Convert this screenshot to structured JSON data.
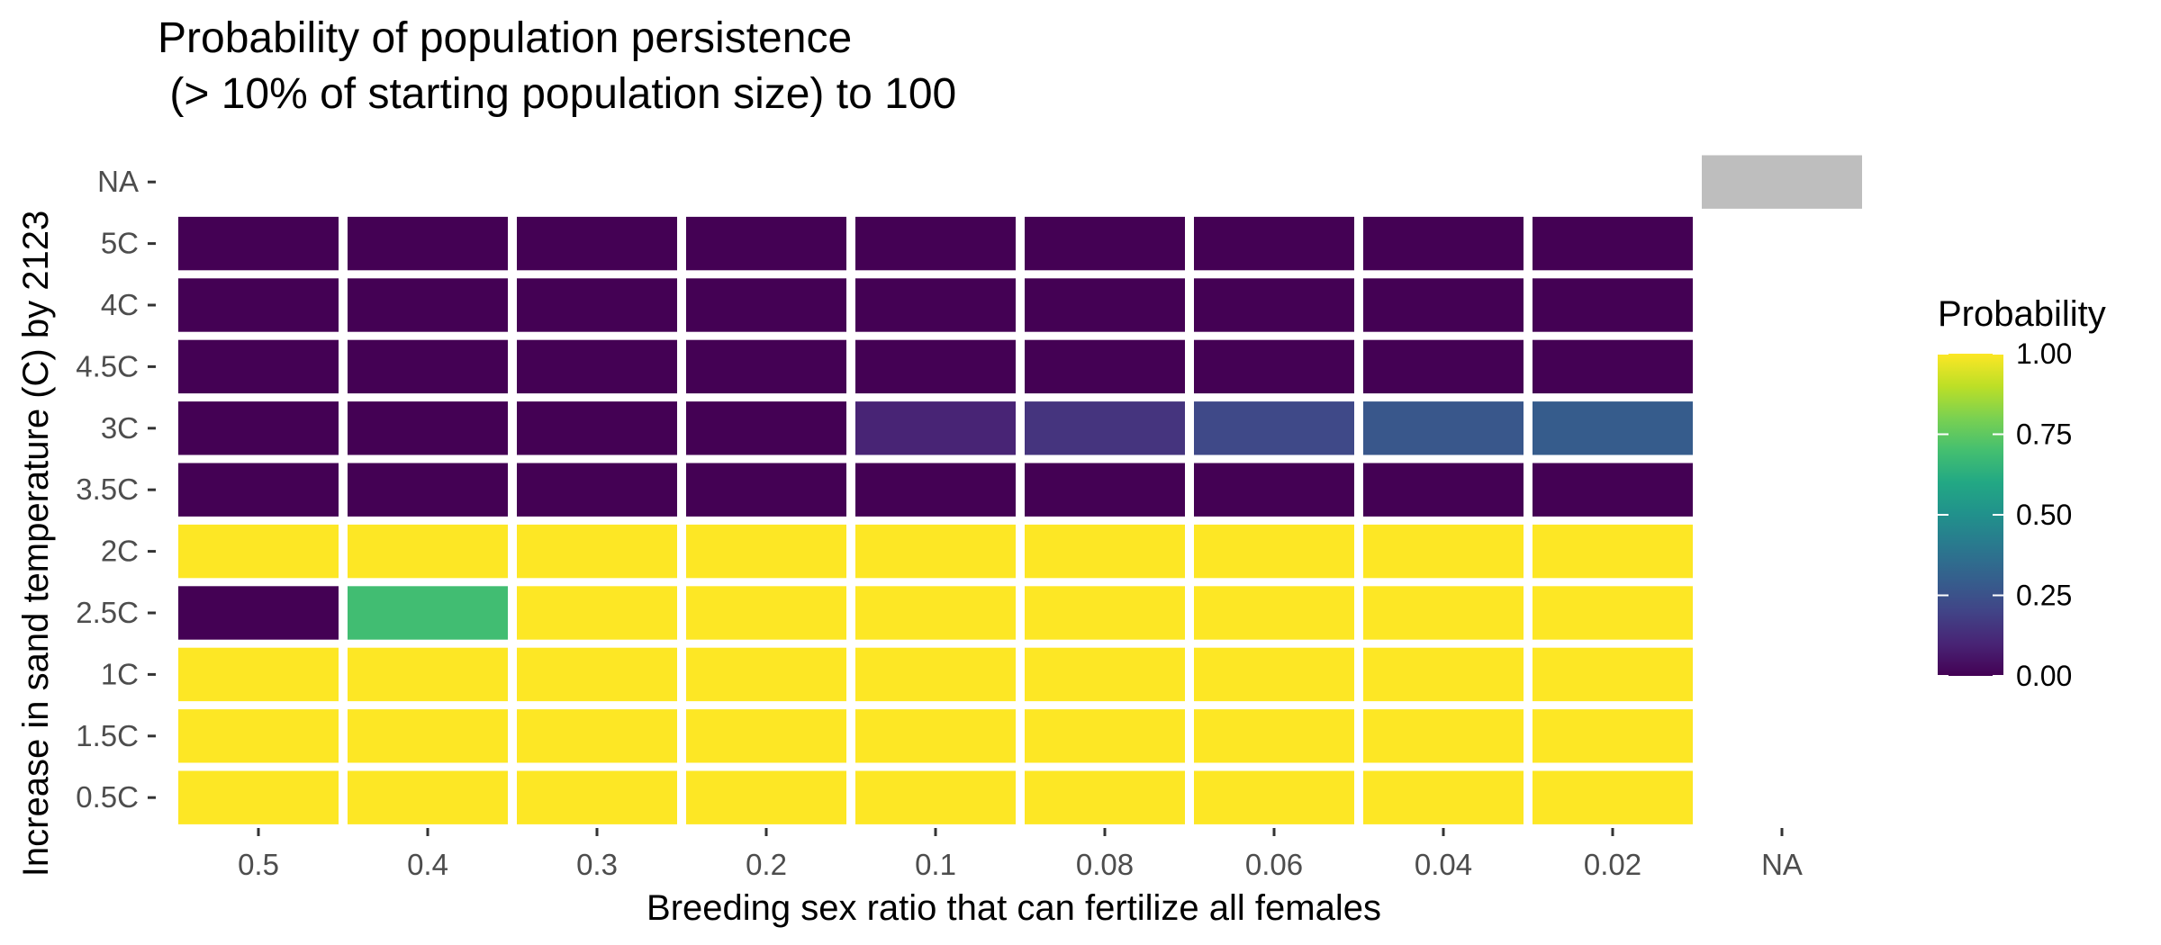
{
  "chart_data": {
    "type": "heatmap",
    "title": [
      "Probability of population persistence",
      " (> 10% of starting population size) to 100"
    ],
    "xlabel": "Breeding sex ratio that can fertilize all females",
    "ylabel": "Increase in sand temperature (C) by 2123",
    "x_categories": [
      "0.5",
      "0.4",
      "0.3",
      "0.2",
      "0.1",
      "0.08",
      "0.06",
      "0.04",
      "0.02",
      "NA"
    ],
    "y_categories": [
      "NA",
      "5C",
      "4C",
      "4.5C",
      "3C",
      "3.5C",
      "2C",
      "2.5C",
      "1C",
      "1.5C",
      "0.5C"
    ],
    "values": [
      [
        null,
        null,
        null,
        null,
        null,
        null,
        null,
        null,
        null,
        "NA"
      ],
      [
        0,
        0,
        0,
        0,
        0,
        0,
        0,
        0,
        0,
        null
      ],
      [
        0,
        0,
        0,
        0,
        0,
        0,
        0,
        0,
        0,
        null
      ],
      [
        0,
        0,
        0,
        0,
        0,
        0,
        0,
        0,
        0,
        null
      ],
      [
        0,
        0,
        0,
        0,
        0.1,
        0.15,
        0.22,
        0.27,
        0.29,
        null
      ],
      [
        0,
        0,
        0,
        0,
        0,
        0,
        0,
        0,
        0,
        null
      ],
      [
        1,
        1,
        1,
        1,
        1,
        1,
        1,
        1,
        1,
        null
      ],
      [
        0,
        0.69,
        1,
        1,
        1,
        1,
        1,
        1,
        1,
        null
      ],
      [
        1,
        1,
        1,
        1,
        1,
        1,
        1,
        1,
        1,
        null
      ],
      [
        1,
        1,
        1,
        1,
        1,
        1,
        1,
        1,
        1,
        null
      ],
      [
        1,
        1,
        1,
        1,
        1,
        1,
        1,
        1,
        1,
        null
      ]
    ],
    "na_color": "#bebebe",
    "colorscale": "viridis",
    "legend": {
      "title": "Probability",
      "placement": "right",
      "ticks": [
        "0.00",
        "0.25",
        "0.50",
        "0.75",
        "1.00"
      ],
      "tick_values": [
        0,
        0.25,
        0.5,
        0.75,
        1.0
      ]
    },
    "grid": false
  }
}
